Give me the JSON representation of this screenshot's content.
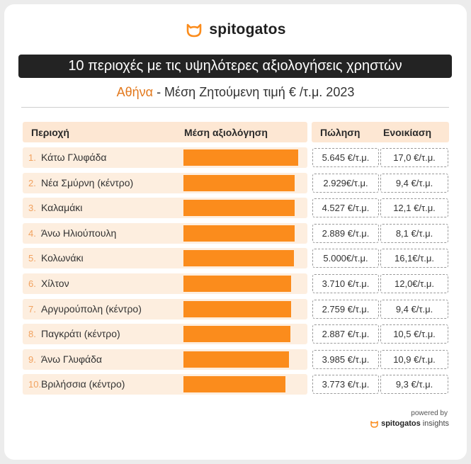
{
  "brand": {
    "name": "spitogatos",
    "accent": "#fb8c1c",
    "icon": "cat-icon"
  },
  "banner": "10 περιοχές με τις υψηλότερες αξιολογήσεις χρηστών",
  "subtitle": {
    "city": "Αθήνα",
    "rest": " - Μέση Ζητούμενη τιμή € /τ.μ. 2023"
  },
  "headers": {
    "area": "Περιοχή",
    "rating": "Μέση αξιολόγηση",
    "sale": "Πώληση",
    "rent": "Ενοικίαση"
  },
  "chart_data": {
    "type": "bar",
    "orientation": "horizontal",
    "ranks": [
      "1.",
      "2.",
      "3.",
      "4.",
      "5.",
      "6.",
      "7.",
      "8.",
      "9.",
      "10."
    ],
    "categories": [
      "Κάτω Γλυφάδα",
      "Νέα Σμύρνη (κέντρο)",
      "Καλαμάκι",
      "Άνω Ηλιούπουλη",
      "Κολωνάκι",
      "Χίλτον",
      "Αργυρούπολη (κέντρο)",
      "Παγκράτι (κέντρο)",
      "Άνω Γλυφάδα",
      "Βριλήσσια (κέντρο)"
    ],
    "relative_rating": [
      1.0,
      0.97,
      0.97,
      0.97,
      0.96,
      0.94,
      0.94,
      0.93,
      0.92,
      0.89
    ],
    "sale": [
      "5.645 €/τ.μ.",
      "2.929€/τ.μ.",
      "4.527 €/τ.μ.",
      "2.889 €/τ.μ.",
      "5.000€/τ.μ.",
      "3.710 €/τ.μ.",
      "2.759 €/τ.μ.",
      "2.887 €/τ.μ.",
      "3.985 €/τ.μ.",
      "3.773 €/τ.μ."
    ],
    "rent": [
      "17,0 €/τ.μ.",
      "9,4 €/τ.μ.",
      "12,1 €/τ.μ.",
      "8,1 €/τ.μ.",
      "16,1€/τ.μ.",
      "12,0€/τ.μ.",
      "9,4 €/τ.μ.",
      "10,5 €/τ.μ.",
      "10,9 €/τ.μ.",
      "9,3 €/τ.μ."
    ]
  },
  "footer": {
    "powered": "powered by",
    "brand": "spitogatos",
    "suffix": "insights"
  }
}
